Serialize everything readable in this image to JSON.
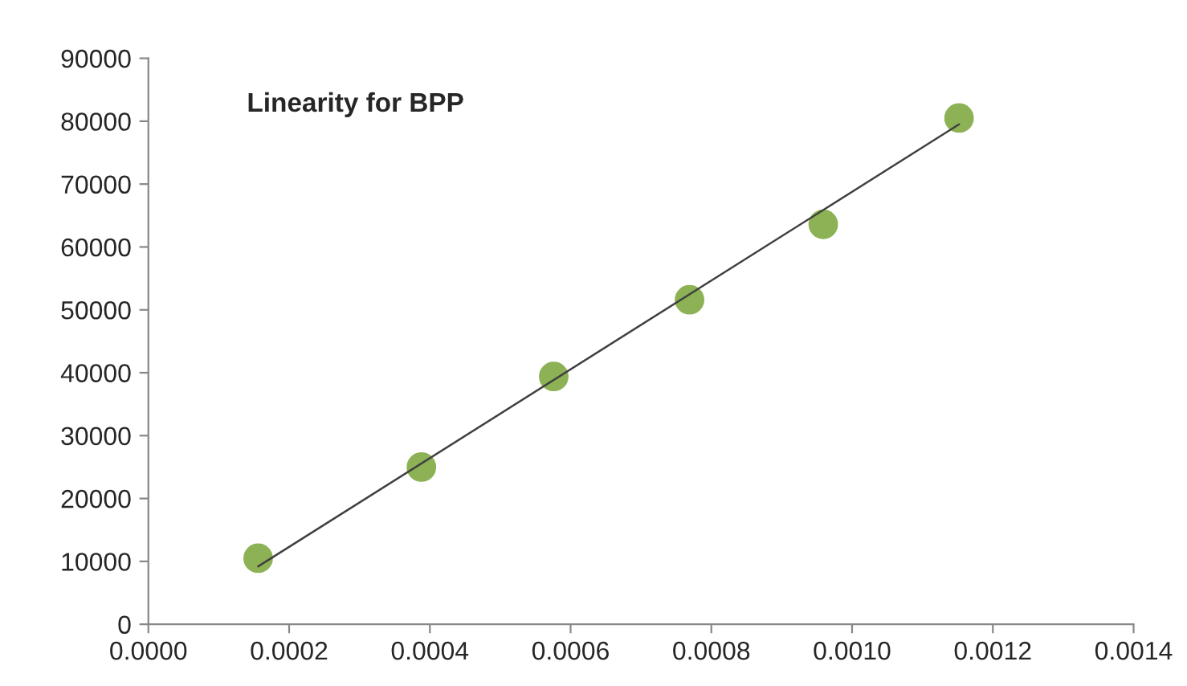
{
  "chart_data": {
    "type": "scatter",
    "title": "Linearity for BPP",
    "series": [
      {
        "color": "#8db255",
        "marker": "circle",
        "x": [
          0.000156,
          0.000388,
          0.000576,
          0.000769,
          0.000959,
          0.001152
        ],
        "values": [
          10500,
          25000,
          39400,
          51600,
          63600,
          80500
        ]
      },
      {
        "type": "line",
        "marker": "none",
        "color": "#404040",
        "x": [
          0.000156,
          0.001152
        ],
        "values": [
          9200,
          79500
        ]
      }
    ],
    "xlim": [
      0,
      0.0014
    ],
    "xticks": [
      {
        "value": 0,
        "label": "0.0000"
      },
      {
        "value": 0.0002,
        "label": "0.0002"
      },
      {
        "value": 0.0004,
        "label": "0.0004"
      },
      {
        "value": 0.0006,
        "label": "0.0006"
      },
      {
        "value": 0.0008,
        "label": "0.0008"
      },
      {
        "value": 0.001,
        "label": "0.0010"
      },
      {
        "value": 0.0012,
        "label": "0.0012"
      },
      {
        "value": 0.0014,
        "label": "0.0014"
      }
    ],
    "ylim": [
      0,
      90000
    ],
    "yticks": [
      0,
      10000,
      20000,
      30000,
      40000,
      50000,
      60000,
      70000,
      80000,
      90000
    ],
    "grid": false,
    "legend": false,
    "line_style": "solid"
  }
}
